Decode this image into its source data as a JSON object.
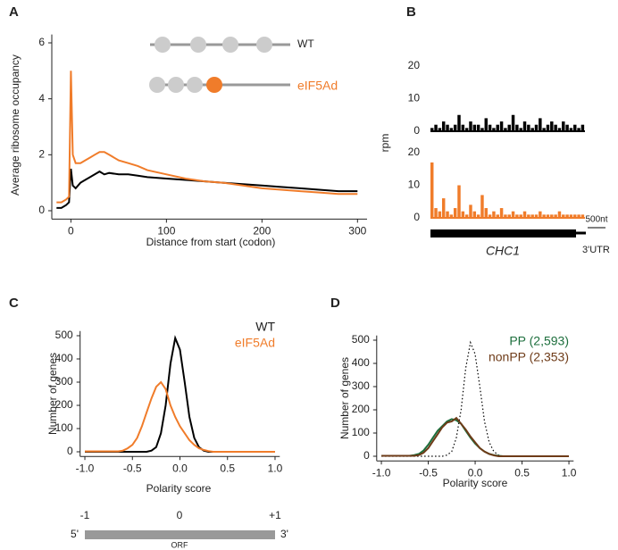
{
  "chart_data": [
    {
      "type": "line",
      "panel": "A",
      "xlabel": "Distance from start (codon)",
      "ylabel": "Average ribosome occupancy",
      "x": [
        -15,
        -10,
        -5,
        -2,
        0,
        2,
        5,
        10,
        15,
        20,
        25,
        30,
        35,
        40,
        50,
        60,
        70,
        80,
        100,
        120,
        140,
        160,
        180,
        200,
        220,
        240,
        260,
        280,
        300
      ],
      "series": [
        {
          "name": "WT",
          "color": "#000000",
          "values": [
            0.1,
            0.1,
            0.2,
            0.3,
            1.5,
            0.9,
            0.8,
            1.0,
            1.1,
            1.2,
            1.3,
            1.4,
            1.3,
            1.35,
            1.3,
            1.3,
            1.25,
            1.2,
            1.15,
            1.1,
            1.05,
            1.0,
            0.95,
            0.9,
            0.85,
            0.8,
            0.75,
            0.7,
            0.7
          ]
        },
        {
          "name": "eIF5Ad",
          "color": "#f07c2a",
          "values": [
            0.3,
            0.3,
            0.4,
            0.5,
            5.0,
            2.0,
            1.7,
            1.7,
            1.8,
            1.9,
            2.0,
            2.1,
            2.1,
            2.0,
            1.8,
            1.7,
            1.6,
            1.45,
            1.3,
            1.15,
            1.05,
            1.0,
            0.9,
            0.8,
            0.75,
            0.7,
            0.65,
            0.6,
            0.6
          ]
        }
      ],
      "xlim": [
        -20,
        310
      ],
      "ylim": [
        -0.3,
        6.3
      ],
      "xticks": [
        0,
        100,
        200,
        300
      ],
      "yticks": [
        0,
        2,
        4,
        6
      ]
    },
    {
      "type": "bar",
      "panel": "B",
      "ylabel": "rpm",
      "color": "#000000",
      "ylim": [
        0,
        22
      ],
      "yticks": [
        0,
        10,
        20
      ],
      "values": [
        1,
        2,
        1,
        3,
        2,
        1,
        2,
        5,
        2,
        1,
        3,
        2,
        2,
        1,
        4,
        2,
        1,
        2,
        3,
        1,
        2,
        5,
        2,
        1,
        3,
        2,
        1,
        2,
        4,
        1,
        2,
        3,
        2,
        1,
        3,
        2,
        1,
        2,
        1,
        2
      ]
    },
    {
      "type": "bar",
      "color": "#f07c2a",
      "ylim": [
        0,
        22
      ],
      "yticks": [
        0,
        10,
        20
      ],
      "annotations": [
        "500nt",
        "CHC1",
        "3'UTR"
      ],
      "values": [
        17,
        3,
        2,
        6,
        2,
        1,
        3,
        10,
        2,
        1,
        4,
        2,
        1,
        7,
        3,
        1,
        2,
        1,
        3,
        1,
        1,
        2,
        1,
        1,
        2,
        1,
        1,
        1,
        2,
        1,
        1,
        1,
        1,
        2,
        1,
        1,
        1,
        1,
        1,
        1
      ]
    },
    {
      "type": "line",
      "panel": "C",
      "xlabel": "Polarity score",
      "ylabel": "Number of genes",
      "x": [
        -1.0,
        -0.95,
        -0.9,
        -0.85,
        -0.8,
        -0.75,
        -0.7,
        -0.65,
        -0.6,
        -0.55,
        -0.5,
        -0.45,
        -0.4,
        -0.35,
        -0.3,
        -0.25,
        -0.2,
        -0.15,
        -0.1,
        -0.05,
        0,
        0.05,
        0.1,
        0.15,
        0.2,
        0.25,
        0.3,
        0.35,
        0.4,
        0.45,
        0.5,
        0.55,
        0.6,
        0.65,
        0.7,
        0.75,
        0.8,
        0.85,
        0.9,
        0.95,
        1.0
      ],
      "series": [
        {
          "name": "WT",
          "color": "#000000",
          "values": [
            0,
            0,
            0,
            0,
            0,
            0,
            0,
            0,
            0,
            0,
            0,
            0,
            0,
            0,
            5,
            20,
            80,
            200,
            380,
            490,
            440,
            300,
            150,
            60,
            20,
            5,
            0,
            0,
            0,
            0,
            0,
            0,
            0,
            0,
            0,
            0,
            0,
            0,
            0,
            0,
            0
          ]
        },
        {
          "name": "eIF5Ad",
          "color": "#f07c2a",
          "values": [
            2,
            2,
            2,
            2,
            2,
            2,
            2,
            2,
            5,
            15,
            30,
            60,
            110,
            170,
            230,
            280,
            300,
            270,
            200,
            150,
            110,
            80,
            50,
            30,
            15,
            8,
            3,
            0,
            0,
            0,
            0,
            0,
            0,
            0,
            0,
            0,
            0,
            0,
            0,
            0,
            0
          ]
        }
      ],
      "xlim": [
        -1.05,
        1.05
      ],
      "ylim": [
        -20,
        520
      ],
      "xticks": [
        {
          "value": -1,
          "label": "-1.0"
        },
        {
          "value": -0.5,
          "label": "-0.5"
        },
        {
          "value": 0,
          "label": "0.0"
        },
        0.5,
        {
          "value": 1,
          "label": "1.0"
        }
      ],
      "yticks": [
        0,
        100,
        200,
        300,
        400,
        500
      ],
      "annotations": [
        "-1",
        "0",
        "+1",
        "5'",
        "3'",
        "ORF"
      ]
    },
    {
      "type": "line",
      "panel": "D",
      "xlabel": "Polarity score",
      "ylabel": "Number of genes",
      "x": [
        -1.0,
        -0.95,
        -0.9,
        -0.85,
        -0.8,
        -0.75,
        -0.7,
        -0.65,
        -0.6,
        -0.55,
        -0.5,
        -0.45,
        -0.4,
        -0.35,
        -0.3,
        -0.25,
        -0.2,
        -0.15,
        -0.1,
        -0.05,
        0,
        0.05,
        0.1,
        0.15,
        0.2,
        0.25,
        0.3,
        0.35,
        0.4,
        0.45,
        0.5,
        0.55,
        0.6,
        0.65,
        0.7,
        0.75,
        0.8,
        0.85,
        0.9,
        0.95,
        1.0
      ],
      "series": [
        {
          "color": "#000000",
          "dash": "dotted",
          "values": [
            0,
            0,
            0,
            0,
            0,
            0,
            0,
            0,
            0,
            0,
            0,
            0,
            0,
            0,
            5,
            20,
            80,
            200,
            380,
            490,
            440,
            300,
            150,
            60,
            20,
            5,
            0,
            0,
            0,
            0,
            0,
            0,
            0,
            0,
            0,
            0,
            0,
            0,
            0,
            0,
            0
          ]
        },
        {
          "name": "PP (2,593)",
          "color": "#1c6e3c",
          "values": [
            2,
            2,
            2,
            2,
            2,
            2,
            2,
            5,
            10,
            25,
            50,
            80,
            110,
            130,
            150,
            160,
            155,
            140,
            110,
            80,
            55,
            35,
            20,
            10,
            5,
            2,
            0,
            0,
            0,
            0,
            0,
            0,
            0,
            0,
            0,
            0,
            0,
            0,
            0,
            0,
            0
          ]
        },
        {
          "name": "nonPP (2,353)",
          "color": "#6e3b18",
          "values": [
            2,
            2,
            2,
            2,
            2,
            2,
            2,
            2,
            5,
            15,
            35,
            65,
            95,
            125,
            145,
            150,
            165,
            140,
            115,
            85,
            60,
            35,
            20,
            10,
            4,
            0,
            0,
            0,
            0,
            0,
            0,
            0,
            0,
            0,
            0,
            0,
            0,
            0,
            0,
            0,
            0
          ]
        }
      ],
      "xlim": [
        -1.05,
        1.05
      ],
      "ylim": [
        -20,
        520
      ],
      "xticks": [
        {
          "value": -1,
          "label": "-1.0"
        },
        {
          "value": -0.5,
          "label": "-0.5"
        },
        {
          "value": 0,
          "label": "0.0"
        },
        0.5,
        {
          "value": 1,
          "label": "1.0"
        }
      ],
      "yticks": [
        0,
        100,
        200,
        300,
        400,
        500
      ]
    }
  ]
}
